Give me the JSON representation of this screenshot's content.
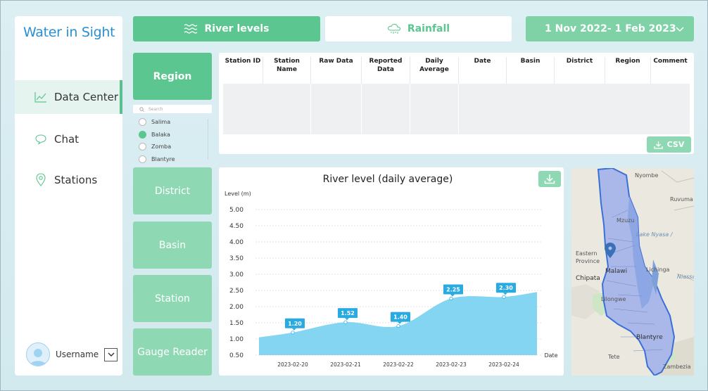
{
  "app": {
    "logo_text": "Water in Sight"
  },
  "sidebar": {
    "items": [
      {
        "label": "Data Center",
        "icon": "chart-line-icon",
        "active": true
      },
      {
        "label": "Chat",
        "icon": "chat-bubble-icon",
        "active": false
      },
      {
        "label": "Stations",
        "icon": "location-pin-icon",
        "active": false
      }
    ],
    "user": {
      "name": "Username"
    }
  },
  "tabs": {
    "river": {
      "label": "River levels",
      "icon": "water-waves-icon"
    },
    "rainfall": {
      "label": "Rainfall",
      "icon": "rain-cloud-icon"
    },
    "date_range": {
      "label": "1 Nov 2022- 1 Feb 2023"
    }
  },
  "filters": {
    "region": "Region",
    "search_placeholder": "Search",
    "regions": [
      {
        "label": "Salima",
        "selected": false
      },
      {
        "label": "Balaka",
        "selected": true
      },
      {
        "label": "Zomba",
        "selected": false
      },
      {
        "label": "Blantyre",
        "selected": false
      }
    ],
    "district": "District",
    "basin": "Basin",
    "station": "Station",
    "gauge_reader": "Gauge Reader"
  },
  "table": {
    "columns": [
      "Station ID",
      "Station Name",
      "Raw Data",
      "Reported Data",
      "Daily Average",
      "Date",
      "Basin",
      "District",
      "Region",
      "Comment"
    ],
    "csv_label": "CSV"
  },
  "chart_data": {
    "type": "area",
    "title": "River level (daily average)",
    "ylabel": "Level (m)",
    "xlabel": "Date",
    "ylim": [
      0.5,
      5.0
    ],
    "yticks": [
      "5.00",
      "4.50",
      "4.00",
      "3.50",
      "3.00",
      "2.50",
      "2.00",
      "1.50",
      "1.00",
      "0.50"
    ],
    "categories": [
      "2023-02-20",
      "2023-02-21",
      "2023-02-22",
      "2023-02-23",
      "2023-02-24"
    ],
    "values": [
      1.2,
      1.52,
      1.4,
      2.25,
      2.3
    ],
    "value_labels": [
      "1.20",
      "1.52",
      "1.40",
      "2.25",
      "2.30"
    ],
    "grid": true,
    "fill_color": "#7dd3f0",
    "label_color": "#29abe2"
  },
  "map": {
    "labels": [
      "Nyombe",
      "Ruvuma",
      "Mzuzu",
      "Lake Nyasa /",
      "Eastern",
      "Province",
      "Malawi",
      "Lichinga",
      "Chipata",
      "Lilongwe",
      "Niassa",
      "Blantyre",
      "Tete",
      "Zambezia"
    ]
  },
  "colors": {
    "green": "#5bc68f",
    "light_green": "#8fd8b4",
    "blue": "#29abe2"
  }
}
